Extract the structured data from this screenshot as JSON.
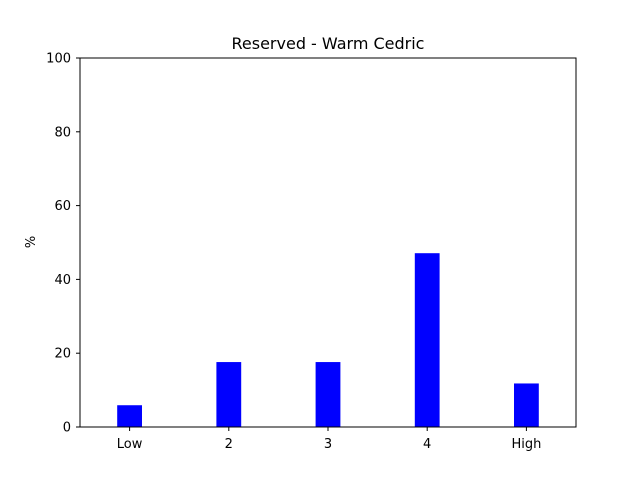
{
  "chart_data": {
    "type": "bar",
    "title": "Reserved - Warm Cedric",
    "xlabel": "",
    "ylabel": "%",
    "categories": [
      "Low",
      "2",
      "3",
      "4",
      "High"
    ],
    "values": [
      5.9,
      17.6,
      17.6,
      47.1,
      11.8
    ],
    "ylim": [
      0,
      100
    ],
    "yticks": [
      0,
      20,
      40,
      60,
      80,
      100
    ],
    "bar_color": "#0000ff",
    "grid": false,
    "legend": "none"
  }
}
